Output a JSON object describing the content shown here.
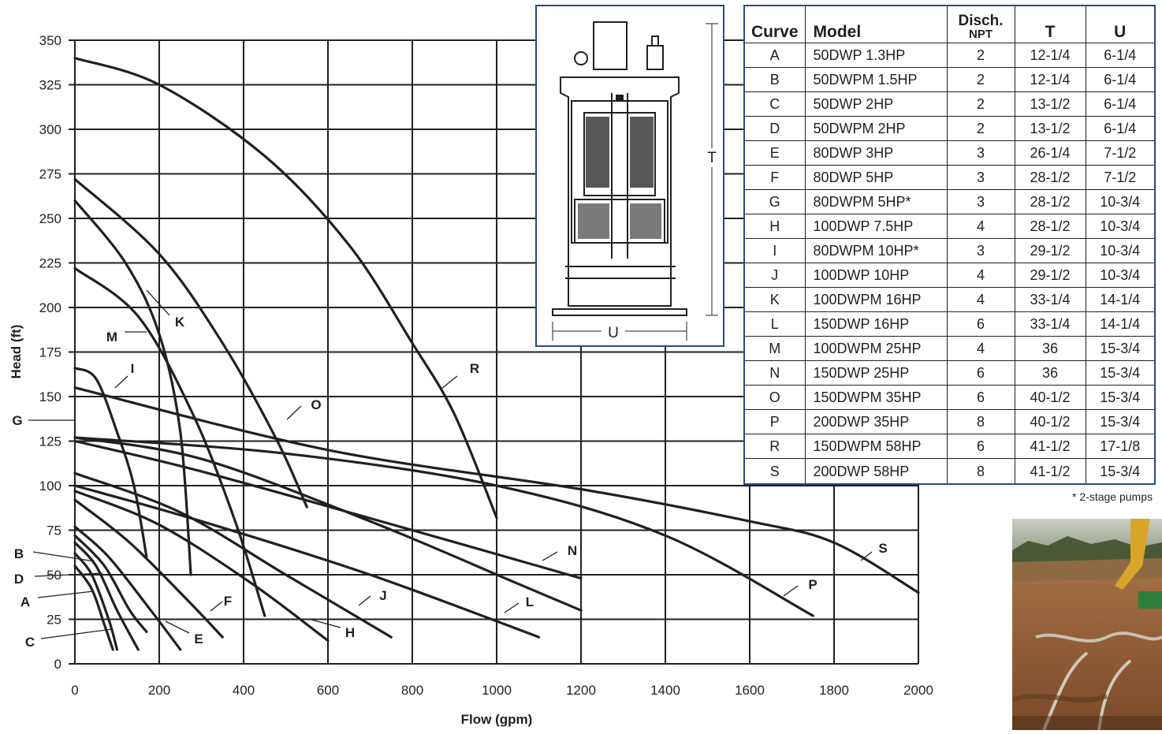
{
  "chart_data": {
    "type": "line",
    "xlabel": "Flow (gpm)",
    "ylabel": "Head (ft)",
    "xlim": [
      0,
      2000
    ],
    "ylim": [
      0,
      350
    ],
    "x_ticks": [
      0,
      200,
      400,
      600,
      800,
      1000,
      1200,
      1400,
      1600,
      1800,
      2000
    ],
    "y_ticks": [
      0,
      25,
      50,
      75,
      100,
      125,
      150,
      175,
      200,
      225,
      250,
      275,
      300,
      325,
      350
    ],
    "grid": true,
    "series": [
      {
        "name": "A",
        "points": [
          [
            0,
            62
          ],
          [
            40,
            50
          ],
          [
            80,
            25
          ],
          [
            100,
            8
          ]
        ]
      },
      {
        "name": "B",
        "points": [
          [
            0,
            68
          ],
          [
            50,
            55
          ],
          [
            100,
            30
          ],
          [
            150,
            8
          ]
        ]
      },
      {
        "name": "C",
        "points": [
          [
            0,
            55
          ],
          [
            40,
            42
          ],
          [
            70,
            22
          ],
          [
            90,
            8
          ]
        ]
      },
      {
        "name": "D",
        "points": [
          [
            0,
            72
          ],
          [
            70,
            55
          ],
          [
            130,
            30
          ],
          [
            170,
            18
          ]
        ]
      },
      {
        "name": "E",
        "points": [
          [
            0,
            77
          ],
          [
            80,
            60
          ],
          [
            180,
            30
          ],
          [
            250,
            8
          ]
        ]
      },
      {
        "name": "F",
        "points": [
          [
            0,
            92
          ],
          [
            130,
            68
          ],
          [
            270,
            35
          ],
          [
            350,
            15
          ]
        ]
      },
      {
        "name": "G",
        "points": [
          [
            0,
            127
          ],
          [
            300,
            115
          ],
          [
            700,
            80
          ],
          [
            1050,
            45
          ],
          [
            1200,
            30
          ]
        ]
      },
      {
        "name": "H",
        "points": [
          [
            0,
            97
          ],
          [
            200,
            78
          ],
          [
            420,
            45
          ],
          [
            600,
            13
          ]
        ]
      },
      {
        "name": "I",
        "points": [
          [
            0,
            166
          ],
          [
            50,
            160
          ],
          [
            100,
            130
          ],
          [
            140,
            100
          ],
          [
            170,
            60
          ]
        ]
      },
      {
        "name": "J",
        "points": [
          [
            0,
            107
          ],
          [
            250,
            85
          ],
          [
            500,
            50
          ],
          [
            750,
            15
          ]
        ]
      },
      {
        "name": "K",
        "points": [
          [
            0,
            260
          ],
          [
            120,
            225
          ],
          [
            200,
            185
          ],
          [
            250,
            130
          ],
          [
            275,
            50
          ]
        ]
      },
      {
        "name": "L",
        "points": [
          [
            0,
            100
          ],
          [
            300,
            80
          ],
          [
            700,
            50
          ],
          [
            1100,
            15
          ]
        ]
      },
      {
        "name": "M",
        "points": [
          [
            0,
            222
          ],
          [
            150,
            195
          ],
          [
            280,
            140
          ],
          [
            380,
            80
          ],
          [
            450,
            27
          ]
        ]
      },
      {
        "name": "N",
        "points": [
          [
            0,
            125
          ],
          [
            300,
            108
          ],
          [
            800,
            75
          ],
          [
            1200,
            48
          ]
        ]
      },
      {
        "name": "O",
        "points": [
          [
            0,
            272
          ],
          [
            200,
            230
          ],
          [
            350,
            180
          ],
          [
            480,
            125
          ],
          [
            550,
            88
          ]
        ]
      },
      {
        "name": "P",
        "points": [
          [
            0,
            127
          ],
          [
            500,
            118
          ],
          [
            1000,
            100
          ],
          [
            1400,
            72
          ],
          [
            1750,
            27
          ]
        ]
      },
      {
        "name": "R",
        "points": [
          [
            0,
            340
          ],
          [
            200,
            325
          ],
          [
            450,
            285
          ],
          [
            650,
            235
          ],
          [
            800,
            180
          ],
          [
            900,
            140
          ],
          [
            1000,
            82
          ]
        ]
      },
      {
        "name": "S",
        "points": [
          [
            0,
            155
          ],
          [
            600,
            120
          ],
          [
            1200,
            98
          ],
          [
            1600,
            80
          ],
          [
            1800,
            68
          ],
          [
            2000,
            40
          ]
        ]
      }
    ]
  },
  "curve_labels": [
    {
      "key": "A",
      "text": "A"
    },
    {
      "key": "B",
      "text": "B"
    },
    {
      "key": "C",
      "text": "C"
    },
    {
      "key": "D",
      "text": "D"
    },
    {
      "key": "E",
      "text": "E"
    },
    {
      "key": "F",
      "text": "F"
    },
    {
      "key": "G",
      "text": "G"
    },
    {
      "key": "H",
      "text": "H"
    },
    {
      "key": "I",
      "text": "I"
    },
    {
      "key": "J",
      "text": "J"
    },
    {
      "key": "K",
      "text": "K"
    },
    {
      "key": "L",
      "text": "L"
    },
    {
      "key": "M",
      "text": "M"
    },
    {
      "key": "N",
      "text": "N"
    },
    {
      "key": "O",
      "text": "O"
    },
    {
      "key": "P",
      "text": "P"
    },
    {
      "key": "R",
      "text": "R"
    },
    {
      "key": "S",
      "text": "S"
    }
  ],
  "diagram": {
    "dim_t": "T",
    "dim_u": "U"
  },
  "table": {
    "headers": {
      "curve": "Curve",
      "model": "Model",
      "disch": "Disch.",
      "disch_sub": "NPT",
      "t": "T",
      "u": "U"
    },
    "rows": [
      {
        "curve": "A",
        "model": "50DWP 1.3HP",
        "disch": "2",
        "t": "12-1/4",
        "u": "6-1/4"
      },
      {
        "curve": "B",
        "model": "50DWPM 1.5HP",
        "disch": "2",
        "t": "12-1/4",
        "u": "6-1/4"
      },
      {
        "curve": "C",
        "model": "50DWP 2HP",
        "disch": "2",
        "t": "13-1/2",
        "u": "6-1/4"
      },
      {
        "curve": "D",
        "model": "50DWPM 2HP",
        "disch": "2",
        "t": "13-1/2",
        "u": "6-1/4"
      },
      {
        "curve": "E",
        "model": "80DWP 3HP",
        "disch": "3",
        "t": "26-1/4",
        "u": "7-1/2"
      },
      {
        "curve": "F",
        "model": "80DWP 5HP",
        "disch": "3",
        "t": "28-1/2",
        "u": "7-1/2"
      },
      {
        "curve": "G",
        "model": "80DWPM 5HP*",
        "disch": "3",
        "t": "28-1/2",
        "u": "10-3/4"
      },
      {
        "curve": "H",
        "model": "100DWP 7.5HP",
        "disch": "4",
        "t": "28-1/2",
        "u": "10-3/4"
      },
      {
        "curve": "I",
        "model": "80DWPM 10HP*",
        "disch": "3",
        "t": "29-1/2",
        "u": "10-3/4"
      },
      {
        "curve": "J",
        "model": "100DWP 10HP",
        "disch": "4",
        "t": "29-1/2",
        "u": "10-3/4"
      },
      {
        "curve": "K",
        "model": "100DWPM 16HP",
        "disch": "4",
        "t": "33-1/4",
        "u": "14-1/4"
      },
      {
        "curve": "L",
        "model": "150DWP 16HP",
        "disch": "6",
        "t": "33-1/4",
        "u": "14-1/4"
      },
      {
        "curve": "M",
        "model": "100DWPM 25HP",
        "disch": "4",
        "t": "36",
        "u": "15-3/4"
      },
      {
        "curve": "N",
        "model": "150DWP 25HP",
        "disch": "6",
        "t": "36",
        "u": "15-3/4"
      },
      {
        "curve": "O",
        "model": "150DWPM 35HP",
        "disch": "6",
        "t": "40-1/2",
        "u": "15-3/4"
      },
      {
        "curve": "P",
        "model": "200DWP 35HP",
        "disch": "8",
        "t": "40-1/2",
        "u": "15-3/4"
      },
      {
        "curve": "R",
        "model": "150DWPM 58HP",
        "disch": "6",
        "t": "41-1/2",
        "u": "17-1/8"
      },
      {
        "curve": "S",
        "model": "200DWP 58HP",
        "disch": "8",
        "t": "41-1/2",
        "u": "15-3/4"
      }
    ],
    "footnote": "* 2-stage pumps"
  },
  "colors": {
    "ink": "#231f20",
    "frame": "#2b4a8b"
  }
}
